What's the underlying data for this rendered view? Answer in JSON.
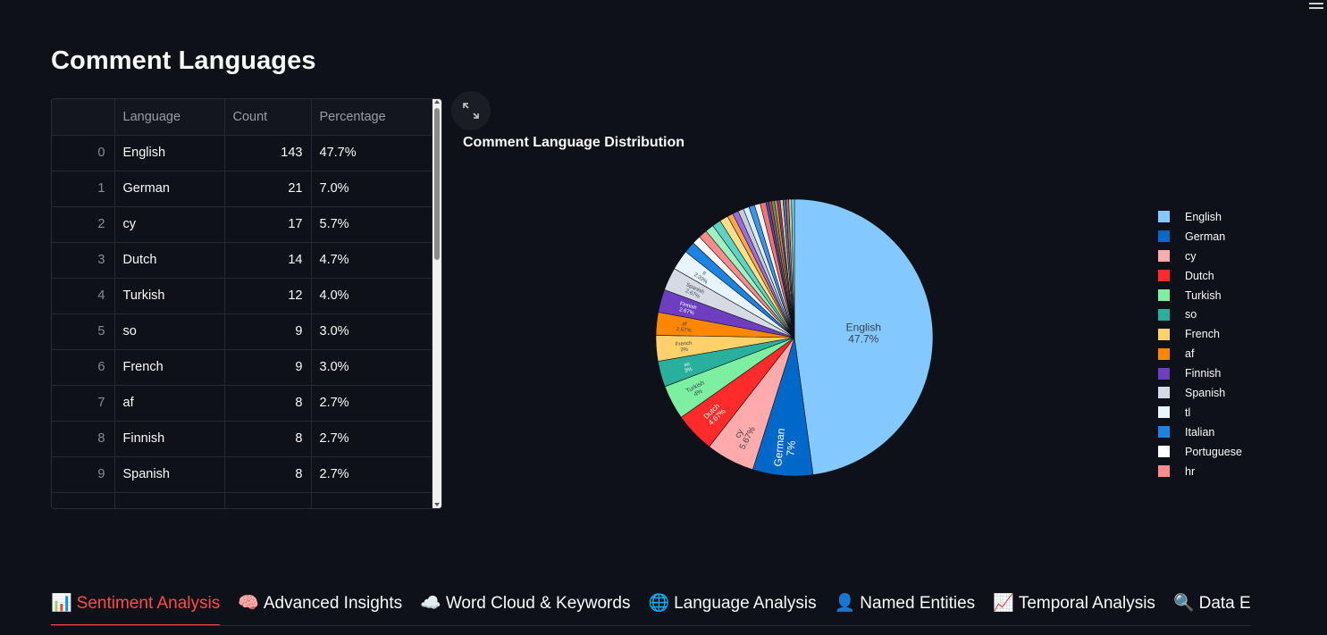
{
  "page": {
    "title": "Comment Languages"
  },
  "table": {
    "columns": [
      "",
      "Language",
      "Count",
      "Percentage"
    ],
    "rows": [
      {
        "index": "0",
        "language": "English",
        "count": "143",
        "percentage": "47.7%"
      },
      {
        "index": "1",
        "language": "German",
        "count": "21",
        "percentage": "7.0%"
      },
      {
        "index": "2",
        "language": "cy",
        "count": "17",
        "percentage": "5.7%"
      },
      {
        "index": "3",
        "language": "Dutch",
        "count": "14",
        "percentage": "4.7%"
      },
      {
        "index": "4",
        "language": "Turkish",
        "count": "12",
        "percentage": "4.0%"
      },
      {
        "index": "5",
        "language": "so",
        "count": "9",
        "percentage": "3.0%"
      },
      {
        "index": "6",
        "language": "French",
        "count": "9",
        "percentage": "3.0%"
      },
      {
        "index": "7",
        "language": "af",
        "count": "8",
        "percentage": "2.7%"
      },
      {
        "index": "8",
        "language": "Finnish",
        "count": "8",
        "percentage": "2.7%"
      },
      {
        "index": "9",
        "language": "Spanish",
        "count": "8",
        "percentage": "2.7%"
      }
    ]
  },
  "chart_data": {
    "type": "pie",
    "title": "Comment Language Distribution",
    "legend_position": "right",
    "slices": [
      {
        "label": "English",
        "value": 47.7,
        "text": "English\n47.7%",
        "color": "#83c9ff"
      },
      {
        "label": "German",
        "value": 7.0,
        "text": "German\n7%",
        "color": "#0068c9"
      },
      {
        "label": "cy",
        "value": 5.67,
        "text": "cy\n5.67%",
        "color": "#ffabab"
      },
      {
        "label": "Dutch",
        "value": 4.67,
        "text": "Dutch\n4.67%",
        "color": "#ff2b2b"
      },
      {
        "label": "Turkish",
        "value": 4.0,
        "text": "Turkish\n4%",
        "color": "#7defa1"
      },
      {
        "label": "so",
        "value": 3.0,
        "text": "so\n3%",
        "color": "#29b09d"
      },
      {
        "label": "French",
        "value": 3.0,
        "text": "French\n3%",
        "color": "#ffd16a"
      },
      {
        "label": "af",
        "value": 2.67,
        "text": "af\n2.67%",
        "color": "#ff8700"
      },
      {
        "label": "Finnish",
        "value": 2.67,
        "text": "Finnish\n2.67%",
        "color": "#6d3fc0"
      },
      {
        "label": "Spanish",
        "value": 2.67,
        "text": "Spanish\n2.67%",
        "color": "#d5dae5"
      },
      {
        "label": "tl",
        "value": 2.33,
        "text": "tl\n2.33%",
        "color": "#e8f4ff"
      },
      {
        "label": "Italian",
        "value": 1.33,
        "text": "",
        "color": "#1c83e1"
      },
      {
        "label": "Portuguese",
        "value": 1.0,
        "text": "",
        "color": "#ffffff"
      },
      {
        "label": "hr",
        "value": 1.0,
        "text": "",
        "color": "#ff8c8c"
      }
    ],
    "other_slices": [
      {
        "value": 1.0,
        "color": "#a1f0c2"
      },
      {
        "value": 1.0,
        "color": "#5fd3c3"
      },
      {
        "value": 1.0,
        "color": "#ffe08a"
      },
      {
        "value": 0.67,
        "color": "#ffa64d"
      },
      {
        "value": 0.67,
        "color": "#9b6ee0"
      },
      {
        "value": 0.67,
        "color": "#c4cad8"
      },
      {
        "value": 0.67,
        "color": "#d7ecff"
      },
      {
        "value": 0.67,
        "color": "#3d95e8"
      },
      {
        "value": 0.67,
        "color": "#f2f2f2"
      },
      {
        "value": 0.67,
        "color": "#ff6f6f"
      },
      {
        "value": 0.33,
        "color": "#0068c9"
      },
      {
        "value": 0.33,
        "color": "#ff2b2b"
      },
      {
        "value": 0.33,
        "color": "#29b09d"
      },
      {
        "value": 0.33,
        "color": "#ff8700"
      },
      {
        "value": 0.33,
        "color": "#6d3fc0"
      },
      {
        "value": 0.33,
        "color": "#ffd16a"
      },
      {
        "value": 0.33,
        "color": "#1c83e1"
      },
      {
        "value": 0.33,
        "color": "#ff4b4b"
      },
      {
        "value": 0.33,
        "color": "#7defa1"
      },
      {
        "value": 0.33,
        "color": "#83c9ff"
      }
    ]
  },
  "tabs": [
    {
      "icon": "📊",
      "label": "Sentiment Analysis",
      "active": true
    },
    {
      "icon": "🧠",
      "label": "Advanced Insights",
      "active": false
    },
    {
      "icon": "☁️",
      "label": "Word Cloud & Keywords",
      "active": false
    },
    {
      "icon": "🌐",
      "label": "Language Analysis",
      "active": false
    },
    {
      "icon": "👤",
      "label": "Named Entities",
      "active": false
    },
    {
      "icon": "📈",
      "label": "Temporal Analysis",
      "active": false
    },
    {
      "icon": "🔍",
      "label": "Data Exp",
      "active": false
    }
  ],
  "icons": {
    "menu": "hamburger-menu-icon",
    "expand": "fullscreen-expand-icon"
  }
}
